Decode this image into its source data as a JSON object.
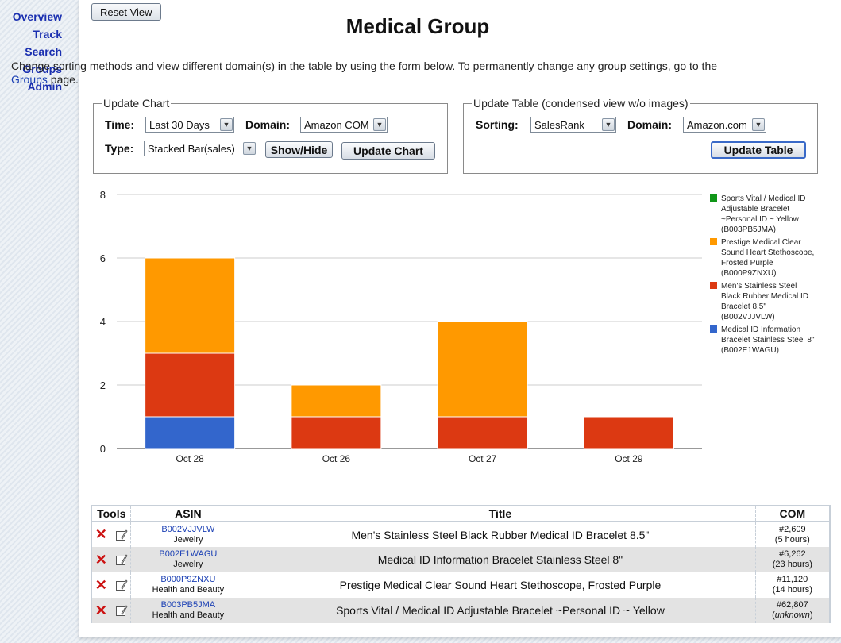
{
  "nav": [
    "Overview",
    "Track",
    "Search",
    "Groups",
    "Admin"
  ],
  "reset_button": "Reset View",
  "page_title": "Medical Group",
  "intro": {
    "text_before": "Change sorting methods and view different domain(s) in the table by using the form below. To permanently change any group settings, go to the ",
    "link": "Groups",
    "text_after": " page."
  },
  "update_chart": {
    "legend": "Update Chart",
    "time_label": "Time:",
    "time_value": "Last 30 Days",
    "domain_label": "Domain:",
    "domain_value": "Amazon COM",
    "type_label": "Type:",
    "type_value": "Stacked Bar(sales)",
    "show_hide": "Show/Hide",
    "update_button": "Update Chart"
  },
  "update_table": {
    "legend": "Update Table (condensed view w/o images)",
    "sorting_label": "Sorting:",
    "sorting_value": "SalesRank",
    "domain_label": "Domain:",
    "domain_value": "Amazon.com",
    "update_button": "Update Table"
  },
  "chart_data": {
    "type": "bar",
    "stacked": true,
    "categories": [
      "Oct 28",
      "Oct 26",
      "Oct 27",
      "Oct 29"
    ],
    "ylim": [
      0,
      8
    ],
    "yticks": [
      0,
      2,
      4,
      6,
      8
    ],
    "grid": true,
    "legend_position": "right",
    "series": [
      {
        "name": "Medical ID Information Bracelet Stainless Steel 8\" (B002E1WAGU)",
        "color": "#3366cc",
        "values": [
          1,
          0,
          0,
          0
        ]
      },
      {
        "name": "Men's Stainless Steel Black Rubber Medical ID Bracelet 8.5\" (B002VJJVLW)",
        "color": "#dc3912",
        "values": [
          2,
          1,
          1,
          1
        ]
      },
      {
        "name": "Prestige Medical Clear Sound Heart Stethoscope, Frosted Purple (B000P9ZNXU)",
        "color": "#ff9900",
        "values": [
          3,
          1,
          3,
          0
        ]
      },
      {
        "name": "Sports Vital / Medical ID Adjustable Bracelet ~Personal ID ~ Yellow (B003PB5JMA)",
        "color": "#109618",
        "values": [
          0,
          0,
          0,
          0
        ]
      }
    ],
    "legend_entries": [
      {
        "color": "#109618",
        "lines": [
          "Sports Vital / Medical ID",
          "Adjustable Bracelet",
          "~Personal ID ~ Yellow",
          "(B003PB5JMA)"
        ]
      },
      {
        "color": "#ff9900",
        "lines": [
          "Prestige Medical Clear",
          "Sound Heart Stethoscope,",
          "Frosted Purple",
          "(B000P9ZNXU)"
        ]
      },
      {
        "color": "#dc3912",
        "lines": [
          "Men's Stainless Steel",
          "Black Rubber Medical ID",
          "Bracelet 8.5\"",
          "(B002VJJVLW)"
        ]
      },
      {
        "color": "#3366cc",
        "lines": [
          "Medical ID Information",
          "Bracelet Stainless Steel 8\"",
          "(B002E1WAGU)"
        ]
      }
    ]
  },
  "table": {
    "headers": [
      "Tools",
      "ASIN",
      "Title",
      "COM"
    ],
    "rows": [
      {
        "asin": "B002VJJVLW",
        "category": "Jewelry",
        "title": "Men's Stainless Steel Black Rubber Medical ID Bracelet 8.5\"",
        "rank": "#2,609",
        "age": "(5 hours)",
        "age_italic": false
      },
      {
        "asin": "B002E1WAGU",
        "category": "Jewelry",
        "title": "Medical ID Information Bracelet Stainless Steel 8\"",
        "rank": "#6,262",
        "age": "(23 hours)",
        "age_italic": false
      },
      {
        "asin": "B000P9ZNXU",
        "category": "Health and Beauty",
        "title": "Prestige Medical Clear Sound Heart Stethoscope, Frosted Purple",
        "rank": "#11,120",
        "age": "(14 hours)",
        "age_italic": false
      },
      {
        "asin": "B003PB5JMA",
        "category": "Health and Beauty",
        "title": "Sports Vital / Medical ID Adjustable Bracelet ~Personal ID ~ Yellow",
        "rank": "#62,807",
        "age": "unknown",
        "age_italic": true
      }
    ]
  }
}
